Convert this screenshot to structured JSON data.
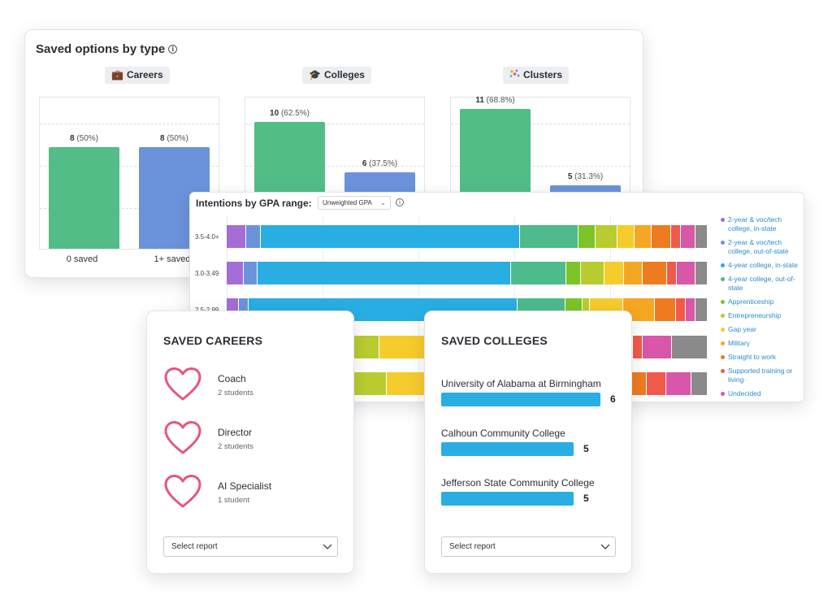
{
  "saved_options": {
    "title": "Saved options by type",
    "info_glyph": "i",
    "groups": [
      {
        "label": "Careers",
        "icon": "briefcase-icon",
        "bars": [
          {
            "value": "8",
            "pct": "(50%)",
            "ratio": 0.5,
            "color": "#52bd87",
            "x_label": "0 saved"
          },
          {
            "value": "8",
            "pct": "(50%)",
            "ratio": 0.5,
            "color": "#6b93db",
            "x_label": "1+ saved"
          }
        ]
      },
      {
        "label": "Colleges",
        "icon": "graduation-cap-icon",
        "bars": [
          {
            "value": "10",
            "pct": "(62.5%)",
            "ratio": 0.625,
            "color": "#52bd87"
          },
          {
            "value": "6",
            "pct": "(37.5%)",
            "ratio": 0.375,
            "color": "#6b93db"
          }
        ]
      },
      {
        "label": "Clusters",
        "icon": "cluster-dots-icon",
        "bars": [
          {
            "value": "11",
            "pct": "(68.8%)",
            "ratio": 0.688,
            "color": "#52bd87"
          },
          {
            "value": "5",
            "pct": "(31.3%)",
            "ratio": 0.313,
            "color": "#6b93db"
          }
        ]
      }
    ]
  },
  "gpa": {
    "title": "Intentions by GPA range:",
    "select_value": "Unweighted GPA",
    "info_glyph": "i",
    "rows": [
      {
        "label": "3.5-4.0+",
        "segments": [
          4,
          3,
          53,
          12,
          3.5,
          4.5,
          3.5,
          3.5,
          4,
          2,
          3,
          2.5
        ]
      },
      {
        "label": "3.0-3.49",
        "segments": [
          3.5,
          3,
          53,
          11.5,
          3,
          5,
          4,
          4,
          5,
          2,
          4,
          2.5
        ]
      },
      {
        "label": "2.5-2.99",
        "segments": [
          2.5,
          2,
          56,
          10,
          3.5,
          1.5,
          7,
          6.5,
          4.5,
          2,
          2,
          2.5
        ]
      },
      {
        "label": "",
        "segments": [
          0,
          0,
          0,
          10.5,
          4,
          9,
          8,
          25,
          6,
          1.5,
          4.5,
          5.5
        ]
      },
      {
        "label": "",
        "segments": [
          0,
          0,
          0,
          11,
          4,
          10,
          12,
          23,
          5.5,
          3,
          4,
          2.5
        ]
      }
    ],
    "legend": [
      {
        "label": "2-year & voc/tech college, in-state",
        "color": "#a46dd6"
      },
      {
        "label": "2-year & voc/tech college, out-of-state",
        "color": "#6b93db"
      },
      {
        "label": "4-year college, in-state",
        "color": "#29aee3"
      },
      {
        "label": "4-year college, out-of-state",
        "color": "#4dbb8c"
      },
      {
        "label": "Apprenticeship",
        "color": "#7cc427"
      },
      {
        "label": "Entrepreneurship",
        "color": "#b9cc2f"
      },
      {
        "label": "Gap year",
        "color": "#f6cb2c"
      },
      {
        "label": "Military",
        "color": "#f5a623"
      },
      {
        "label": "Straight to work",
        "color": "#ee7b1f"
      },
      {
        "label": "Supported training or living",
        "color": "#f15a4a"
      },
      {
        "label": "Undecided",
        "color": "#d957a8"
      },
      {
        "label": "",
        "color": "#8a8a8a"
      }
    ]
  },
  "saved_careers": {
    "title": "SAVED CAREERS",
    "items": [
      {
        "name": "Coach",
        "count": "2 students"
      },
      {
        "name": "Director",
        "count": "2 students"
      },
      {
        "name": "AI Specialist",
        "count": "1 student"
      }
    ],
    "select_placeholder": "Select report"
  },
  "saved_colleges": {
    "title": "SAVED COLLEGES",
    "items": [
      {
        "name": "University of Alabama at Birmingham",
        "value": "6",
        "ratio": 1.0
      },
      {
        "name": "Calhoun Community College",
        "value": "5",
        "ratio": 0.83
      },
      {
        "name": "Jefferson State Community College",
        "value": "5",
        "ratio": 0.83
      }
    ],
    "select_placeholder": "Select report"
  },
  "colors": {
    "heart": "#e8557c",
    "college_bar": "#29aee3",
    "legend_text": "#2b8ccd"
  }
}
